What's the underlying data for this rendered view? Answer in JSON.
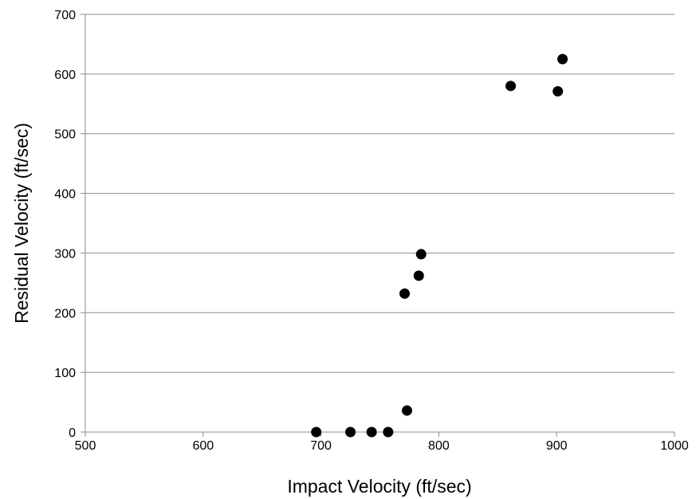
{
  "chart_data": {
    "type": "scatter",
    "title": "",
    "xlabel": "Impact Velocity (ft/sec)",
    "ylabel": "Residual Velocity (ft/sec)",
    "xlim": [
      500,
      1000
    ],
    "ylim": [
      0,
      700
    ],
    "x_ticks": [
      500,
      600,
      700,
      800,
      900,
      1000
    ],
    "y_ticks": [
      0,
      100,
      200,
      300,
      400,
      500,
      600,
      700
    ],
    "x_tick_labels": [
      "500",
      "600",
      "700",
      "800",
      "900",
      "1000"
    ],
    "y_tick_labels": [
      "0",
      "100",
      "200",
      "300",
      "400",
      "500",
      "600",
      "700"
    ],
    "grid": "horizontal",
    "legend": "none",
    "marker_color": "#000000",
    "series": [
      {
        "points": [
          {
            "x": 696,
            "y": 0
          },
          {
            "x": 725,
            "y": 0
          },
          {
            "x": 743,
            "y": 0
          },
          {
            "x": 757,
            "y": 0
          },
          {
            "x": 773,
            "y": 36
          },
          {
            "x": 771,
            "y": 232
          },
          {
            "x": 783,
            "y": 262
          },
          {
            "x": 785,
            "y": 298
          },
          {
            "x": 861,
            "y": 580
          },
          {
            "x": 901,
            "y": 571
          },
          {
            "x": 905,
            "y": 625
          }
        ]
      }
    ]
  }
}
